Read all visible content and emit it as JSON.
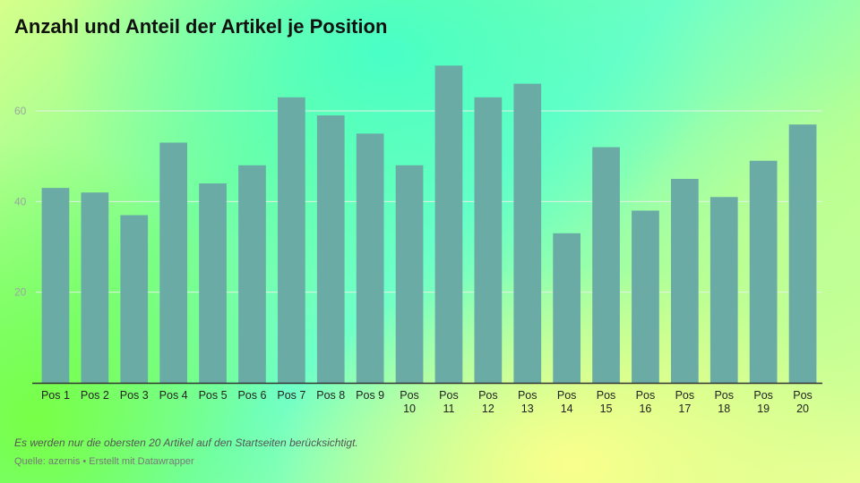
{
  "chart_data": {
    "type": "bar",
    "title": "Anzahl und Anteil der Artikel je Position",
    "categories": [
      [
        "Pos 1"
      ],
      [
        "Pos 2"
      ],
      [
        "Pos 3"
      ],
      [
        "Pos 4"
      ],
      [
        "Pos 5"
      ],
      [
        "Pos 6"
      ],
      [
        "Pos 7"
      ],
      [
        "Pos 8"
      ],
      [
        "Pos 9"
      ],
      [
        "Pos",
        "10"
      ],
      [
        "Pos",
        "11"
      ],
      [
        "Pos",
        "12"
      ],
      [
        "Pos",
        "13"
      ],
      [
        "Pos",
        "14"
      ],
      [
        "Pos",
        "15"
      ],
      [
        "Pos",
        "16"
      ],
      [
        "Pos",
        "17"
      ],
      [
        "Pos",
        "18"
      ],
      [
        "Pos",
        "19"
      ],
      [
        "Pos",
        "20"
      ]
    ],
    "values": [
      43,
      42,
      37,
      53,
      44,
      48,
      63,
      59,
      55,
      48,
      70,
      63,
      66,
      33,
      52,
      38,
      45,
      41,
      49,
      57
    ],
    "ylim": [
      0,
      75
    ],
    "yticks": [
      20,
      40,
      60
    ],
    "grid": true,
    "bar_color": "#6aaba6",
    "grid_color": "#e3f0e6",
    "axis_color": "#333333"
  },
  "footer": {
    "note": "Es werden nur die obersten 20 Artikel auf den Startseiten berücksichtigt.",
    "source_label": "Quelle: azernis",
    "separator": "•",
    "credit": "Erstellt mit Datawrapper"
  }
}
